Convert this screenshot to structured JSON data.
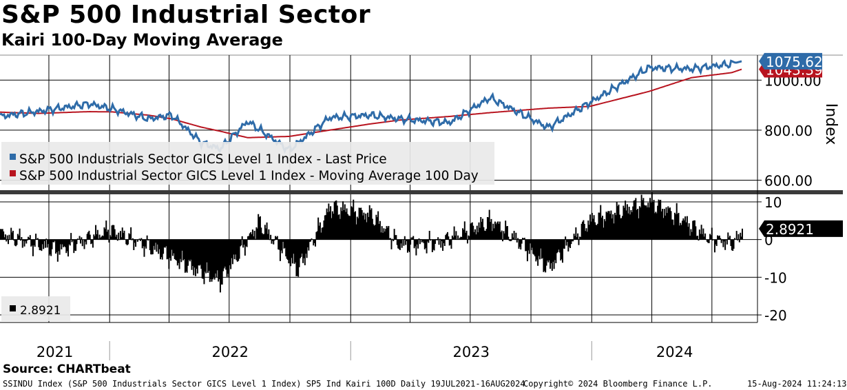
{
  "header": {
    "title": "S&P 500 Industrial Sector",
    "subtitle": "Kairi 100-Day Moving Average"
  },
  "source": "Source: CHARTbeat",
  "footer": {
    "left": "SSINDU Index (S&P 500 Industrials Sector GICS Level 1 Index) SP5 Ind Kairi 100D  Daily 19JUL2021-16AUG2024",
    "center": "Copyright© 2024 Bloomberg Finance L.P.",
    "right": "15-Aug-2024 11:24:13"
  },
  "colors": {
    "price": "#2e6ba8",
    "ma": "#b8141f",
    "kairi": "#000000"
  },
  "chart_data": [
    {
      "type": "line",
      "ylabel": "Index",
      "ylim": [
        560,
        1100
      ],
      "yticks": [
        "600.00",
        "800.00",
        "1000.00"
      ],
      "x": [
        "2021-07-19",
        "2021-09-15",
        "2021-12-01",
        "2022-01-05",
        "2022-03-01",
        "2022-04-05",
        "2022-05-20",
        "2022-06-17",
        "2022-07-29",
        "2022-09-30",
        "2022-11-30",
        "2023-01-31",
        "2023-03-15",
        "2023-05-31",
        "2023-07-31",
        "2023-10-27",
        "2023-12-29",
        "2024-03-28",
        "2024-05-31",
        "2024-07-31",
        "2024-08-15"
      ],
      "series": [
        {
          "name": "S&P 500 Industrials Sector GICS Level 1 Index - Last Price",
          "values": [
            855,
            875,
            905,
            885,
            845,
            860,
            750,
            725,
            835,
            720,
            850,
            860,
            845,
            830,
            930,
            810,
            910,
            1050,
            1045,
            1065,
            1075.62
          ]
        },
        {
          "name": "S&P 500 Industrial Sector GICS Level 1 Index - Moving Average 100 Day",
          "values": [
            872,
            867,
            874,
            873,
            860,
            845,
            812,
            796,
            770,
            775,
            800,
            825,
            840,
            855,
            870,
            888,
            895,
            955,
            1010,
            1030,
            1043.39
          ]
        }
      ],
      "last_labels": {
        "price": "1075.62",
        "ma": "1043.39"
      },
      "legend": "top-left"
    },
    {
      "type": "bar",
      "name": "2.8921",
      "ylim": [
        -22,
        12
      ],
      "yticks": [
        "10",
        "0",
        "-10",
        "-20"
      ],
      "x": [
        "2021-07-19",
        "2021-10-15",
        "2021-12-31",
        "2022-03-01",
        "2022-05-12",
        "2022-06-17",
        "2022-08-15",
        "2022-10-12",
        "2022-11-30",
        "2023-02-01",
        "2023-03-15",
        "2023-05-15",
        "2023-08-01",
        "2023-09-15",
        "2023-10-27",
        "2023-12-28",
        "2024-03-28",
        "2024-05-10",
        "2024-06-28",
        "2024-08-05",
        "2024-08-15"
      ],
      "values": [
        1.5,
        -3.0,
        2.5,
        -2.0,
        -8.0,
        -11.0,
        4.5,
        -8.0,
        8.5,
        6.5,
        -1.5,
        -1.0,
        5.0,
        -1.0,
        -7.5,
        5.0,
        10.0,
        6.0,
        0.0,
        -1.0,
        2.8921
      ],
      "last_label": "2.8921",
      "legend": "bottom-left"
    }
  ],
  "x_axis": {
    "years": [
      "2021",
      "2022",
      "2023",
      "2024"
    ],
    "domain": [
      "2021-07-19",
      "2024-09-08"
    ]
  }
}
